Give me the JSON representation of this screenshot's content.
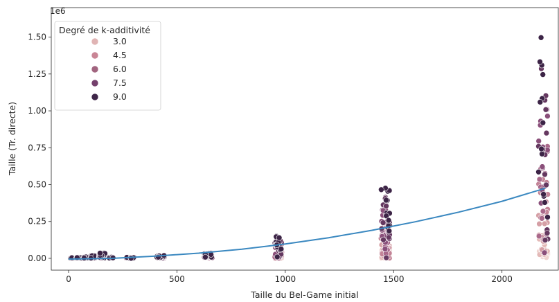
{
  "chart_data": {
    "type": "scatter",
    "xlabel": "Taille du Bel-Game initial",
    "ylabel": "Taille (Tr. directe)",
    "y_offset_label": "1e6",
    "xlim": [
      -80,
      2260
    ],
    "ylim": [
      -0.08,
      1.7
    ],
    "x_ticks": [
      0,
      500,
      1000,
      1500,
      2000
    ],
    "x_tick_labels": [
      "0",
      "500",
      "1000",
      "1500",
      "2000"
    ],
    "y_ticks": [
      0.0,
      0.25,
      0.5,
      0.75,
      1.0,
      1.25,
      1.5
    ],
    "y_tick_labels": [
      "0.00",
      "0.25",
      "0.50",
      "0.75",
      "1.00",
      "1.25",
      "1.50"
    ],
    "grid": false,
    "legend": {
      "title": "Degré de k-additivité",
      "placement": "top-left",
      "entries": [
        {
          "label": "3.0",
          "color": "#e0b4b4"
        },
        {
          "label": "4.5",
          "color": "#c98595"
        },
        {
          "label": "6.0",
          "color": "#a1647f"
        },
        {
          "label": "7.5",
          "color": "#74406c"
        },
        {
          "label": "9.0",
          "color": "#3f2649"
        }
      ]
    },
    "points_description": "Scatter values in units of 1e6; y max per x-cluster grows with k-additivity degree",
    "clusters": [
      {
        "x": 20,
        "x_spread": 12,
        "k_levels": [
          2,
          3,
          4,
          5,
          6,
          7,
          8,
          9
        ],
        "ymax": 0.004
      },
      {
        "x": 48,
        "x_spread": 12,
        "k_levels": [
          2,
          3,
          4,
          5,
          6,
          7,
          8,
          9
        ],
        "ymax": 0.006
      },
      {
        "x": 80,
        "x_spread": 10,
        "k_levels": [
          2,
          3,
          4,
          5,
          6,
          7,
          8,
          9
        ],
        "ymax": 0.01
      },
      {
        "x": 115,
        "x_spread": 12,
        "k_levels": [
          2,
          3,
          4,
          5,
          6,
          7,
          8,
          9
        ],
        "ymax": 0.02
      },
      {
        "x": 155,
        "x_spread": 14,
        "k_levels": [
          2,
          3,
          4,
          5,
          6,
          7,
          8,
          9
        ],
        "ymax": 0.04
      },
      {
        "x": 195,
        "x_spread": 10,
        "k_levels": [
          2,
          3,
          4,
          5,
          6,
          7,
          8,
          9
        ],
        "ymax": 0.008
      },
      {
        "x": 285,
        "x_spread": 18,
        "k_levels": [
          2,
          3,
          4,
          5,
          6,
          7,
          8,
          9
        ],
        "ymax": 0.008
      },
      {
        "x": 425,
        "x_spread": 18,
        "k_levels": [
          2,
          3,
          4,
          5,
          6,
          7,
          8,
          9
        ],
        "ymax": 0.02
      },
      {
        "x": 645,
        "x_spread": 18,
        "k_levels": [
          2,
          3,
          4,
          5,
          6,
          7,
          8,
          9
        ],
        "ymax": 0.045
      },
      {
        "x": 968,
        "x_spread": 16,
        "k_levels": [
          2,
          3,
          4,
          5,
          6,
          7,
          8,
          9
        ],
        "ymax": 0.155
      },
      {
        "x": 1462,
        "x_spread": 20,
        "k_levels": [
          2,
          3,
          4,
          5,
          6,
          7,
          8,
          9
        ],
        "ymax": 0.525
      },
      {
        "x": 2190,
        "x_spread": 22,
        "k_levels": [
          2,
          3,
          4,
          5,
          6,
          7,
          8,
          9
        ],
        "ymax": 1.65
      }
    ],
    "fit_line": {
      "color": "#3a88c0",
      "x": [
        0,
        200,
        400,
        600,
        800,
        1000,
        1200,
        1400,
        1600,
        1800,
        2000,
        2200
      ],
      "y": [
        -0.005,
        0.0,
        0.015,
        0.035,
        0.062,
        0.097,
        0.14,
        0.19,
        0.248,
        0.313,
        0.387,
        0.475
      ]
    }
  }
}
